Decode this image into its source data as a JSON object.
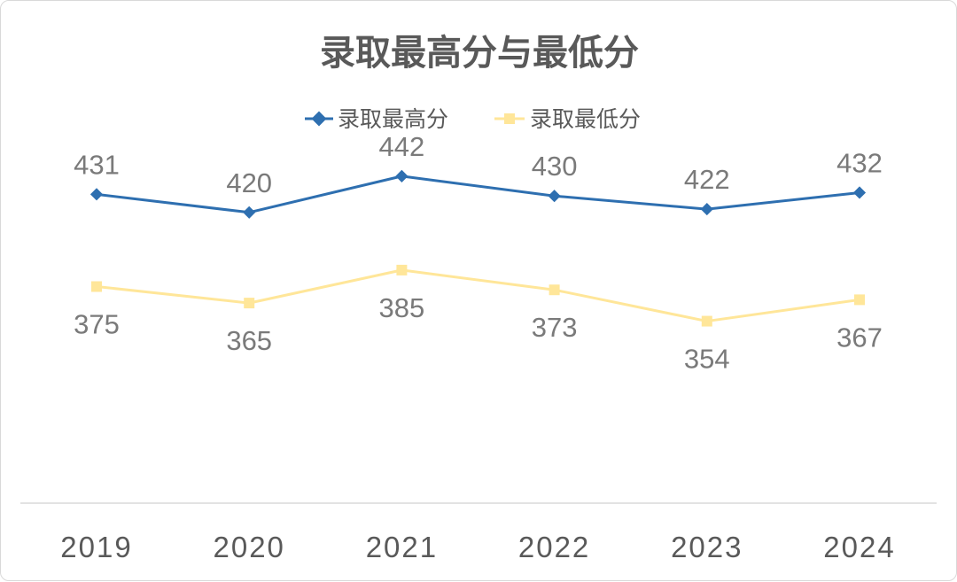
{
  "chart_data": {
    "type": "line",
    "title": "录取最高分与最低分",
    "categories": [
      "2019",
      "2020",
      "2021",
      "2022",
      "2023",
      "2024"
    ],
    "series": [
      {
        "name": "录取最高分",
        "values": [
          431,
          420,
          442,
          430,
          422,
          432
        ],
        "color": "#2e6fb0",
        "marker": "diamond",
        "label_position": "above"
      },
      {
        "name": "录取最低分",
        "values": [
          375,
          365,
          385,
          373,
          354,
          367
        ],
        "color": "#ffe699",
        "marker": "square",
        "label_position": "below"
      }
    ],
    "xlabel": "",
    "ylabel": "",
    "ylim": [
      250,
      500
    ],
    "y_axis_visible": false,
    "grid": false,
    "legend": "top-center"
  }
}
